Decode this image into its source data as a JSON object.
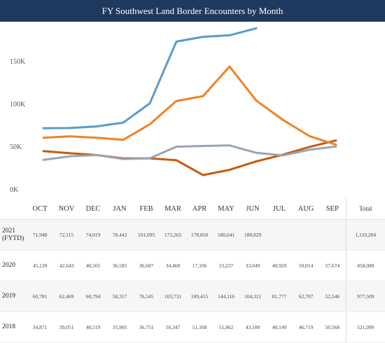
{
  "title": "FY Southwest Land Border Encounters by Month",
  "chart_data": {
    "type": "line",
    "title": "FY Southwest Land Border Encounters by Month",
    "categories": [
      "OCT",
      "NOV",
      "DEC",
      "JAN",
      "FEB",
      "MAR",
      "APR",
      "MAY",
      "JUN",
      "JUL",
      "AUG",
      "SEP"
    ],
    "ylim": [
      0,
      190000
    ],
    "yticks": [
      {
        "value": 0,
        "label": "0K"
      },
      {
        "value": 50000,
        "label": "50K"
      },
      {
        "value": 100000,
        "label": "100K"
      },
      {
        "value": 150000,
        "label": "150K"
      }
    ],
    "grid": false,
    "series": [
      {
        "year": "2021 (FYTD)",
        "color": "#5a9bc9",
        "values": [
          71948,
          72115,
          74019,
          78442,
          101095,
          173265,
          178850,
          180641,
          188829,
          null,
          null,
          null
        ]
      },
      {
        "year": "2020",
        "color": "#c55a11",
        "values": [
          45139,
          42643,
          40565,
          36585,
          36687,
          34460,
          17106,
          23237,
          33049,
          40929,
          50014,
          57674
        ]
      },
      {
        "year": "2019",
        "color": "#f28120",
        "values": [
          60781,
          62469,
          60794,
          58317,
          76545,
          103731,
          109415,
          144116,
          104311,
          81777,
          62707,
          52546
        ]
      },
      {
        "year": "2018",
        "color": "#9aa5b4",
        "values": [
          34871,
          39051,
          40519,
          35905,
          36751,
          50347,
          51168,
          51862,
          43180,
          40149,
          46719,
          50568
        ]
      }
    ]
  },
  "table": {
    "total_header": "Total",
    "rows": [
      {
        "year": "2021 (FYTD)",
        "cells": [
          "71,948",
          "72,115",
          "74,019",
          "78,442",
          "101,095",
          "173,265",
          "178,850",
          "180,641",
          "188,829",
          "",
          "",
          ""
        ],
        "total": "1,119,204"
      },
      {
        "year": "2020",
        "cells": [
          "45,139",
          "42,643",
          "40,565",
          "36,585",
          "36,687",
          "34,460",
          "17,106",
          "23,237",
          "33,049",
          "40,929",
          "50,014",
          "57,674"
        ],
        "total": "458,088"
      },
      {
        "year": "2019",
        "cells": [
          "60,781",
          "62,469",
          "60,794",
          "58,317",
          "76,545",
          "103,731",
          "109,415",
          "144,116",
          "104,311",
          "81,777",
          "62,707",
          "52,546"
        ],
        "total": "977,509"
      },
      {
        "year": "2018",
        "cells": [
          "34,871",
          "39,051",
          "40,519",
          "35,905",
          "36,751",
          "50,347",
          "51,168",
          "51,862",
          "43,180",
          "40,149",
          "46,719",
          "50,568"
        ],
        "total": "521,090"
      }
    ]
  }
}
